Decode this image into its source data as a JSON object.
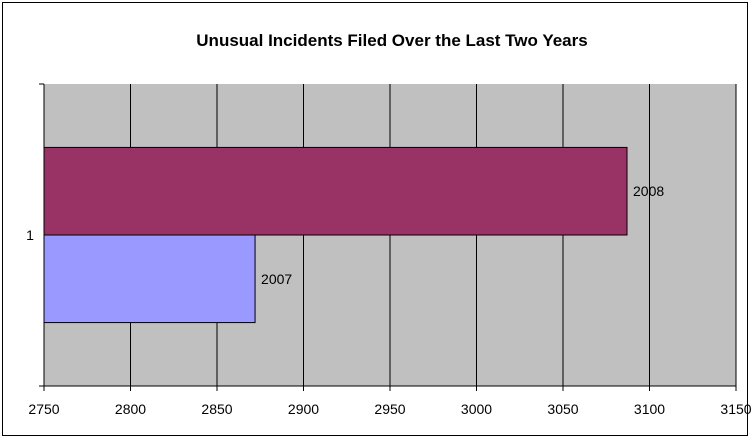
{
  "chart_data": {
    "type": "bar",
    "orientation": "horizontal",
    "title": "Unusual Incidents Filed Over the Last Two Years",
    "categories": [
      "1"
    ],
    "series": [
      {
        "name": "2008",
        "values": [
          3087
        ],
        "color": "#993366",
        "data_label": "2008"
      },
      {
        "name": "2007",
        "values": [
          2872
        ],
        "color": "#9999ff",
        "data_label": "2007"
      }
    ],
    "xlim": [
      2750,
      3150
    ],
    "xticks": [
      "2750",
      "2800",
      "2850",
      "2900",
      "2950",
      "3000",
      "3050",
      "3100",
      "3150"
    ],
    "plot_background": "#c0c0c0",
    "grid": true,
    "legend": "none"
  }
}
